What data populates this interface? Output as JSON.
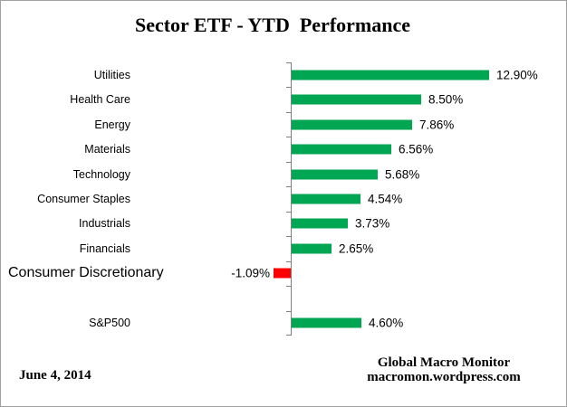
{
  "title": "Sector ETF - YTD  Performance",
  "footer": {
    "date": "June 4, 2014",
    "credit_line1": "Global Macro Monitor",
    "credit_line2": "macromon.wordpress.com"
  },
  "chart_data": {
    "type": "bar",
    "orientation": "horizontal",
    "title": "Sector ETF - YTD Performance",
    "xlabel": "",
    "ylabel": "",
    "unit": "%",
    "xlim": [
      -10.3,
      17.9
    ],
    "grid": false,
    "legend": "none",
    "categories": [
      "Utilities",
      "Health Care",
      "Energy",
      "Materials",
      "Technology",
      "Consumer Staples",
      "Industrials",
      "Financials",
      "Consumer Discretionary",
      "",
      "S&P500"
    ],
    "values": [
      12.9,
      8.5,
      7.86,
      6.56,
      5.68,
      4.54,
      3.73,
      2.65,
      -1.09,
      null,
      4.6
    ],
    "value_labels": [
      "12.90%",
      "8.50%",
      "7.86%",
      "6.56%",
      "5.68%",
      "4.54%",
      "3.73%",
      "2.65%",
      "-1.09%",
      "",
      "4.60%"
    ],
    "colors": {
      "positive_bar": "#00A651",
      "negative_bar": "#FF0000",
      "axis": "#808080",
      "text": "#000000",
      "border": "#A0A0A0",
      "background": "#FFFFFF"
    }
  }
}
